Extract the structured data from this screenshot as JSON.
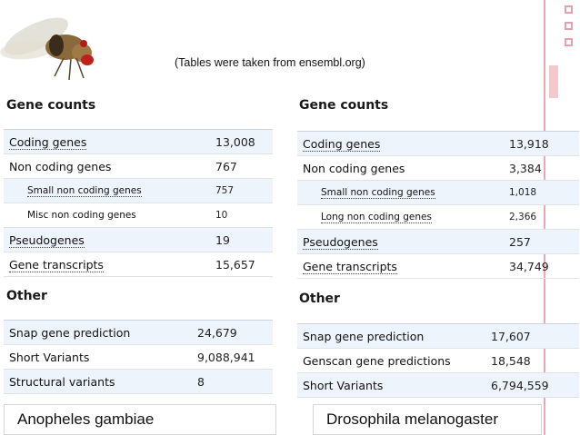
{
  "note": "(Tables were taken from ensembl.org)",
  "left": {
    "gene_counts_title": "Gene counts",
    "rows": [
      {
        "label": "Coding genes",
        "value": "13,008"
      },
      {
        "label": "Non coding genes",
        "value": "767"
      },
      {
        "label": "Small non coding genes",
        "value": "757"
      },
      {
        "label": "Misc non coding genes",
        "value": "10"
      },
      {
        "label": "Pseudogenes",
        "value": "19"
      },
      {
        "label": "Gene transcripts",
        "value": "15,657"
      }
    ],
    "other_title": "Other",
    "other_rows": [
      {
        "label": "Snap gene prediction",
        "value": "24,679"
      },
      {
        "label": "Short Variants",
        "value": "9,088,941"
      },
      {
        "label": "Structural variants",
        "value": "8"
      }
    ],
    "species": "Anopheles gambiae"
  },
  "right": {
    "gene_counts_title": "Gene counts",
    "rows": [
      {
        "label": "Coding genes",
        "value": "13,918"
      },
      {
        "label": "Non coding genes",
        "value": "3,384"
      },
      {
        "label": "Small non coding genes",
        "value": "1,018"
      },
      {
        "label": "Long non coding genes",
        "value": "2,366"
      },
      {
        "label": "Pseudogenes",
        "value": "257"
      },
      {
        "label": "Gene transcripts",
        "value": "34,749"
      }
    ],
    "other_title": "Other",
    "other_rows": [
      {
        "label": "Snap gene prediction",
        "value": "17,607"
      },
      {
        "label": "Genscan gene predictions",
        "value": "18,548"
      },
      {
        "label": "Short Variants",
        "value": "6,794,559"
      }
    ],
    "species": "Drosophila melanogaster"
  },
  "icons": {
    "fly": "fruit-fly-image"
  },
  "colors": {
    "accent": "#e9a8b2",
    "row_blue": "#eef4fb"
  }
}
